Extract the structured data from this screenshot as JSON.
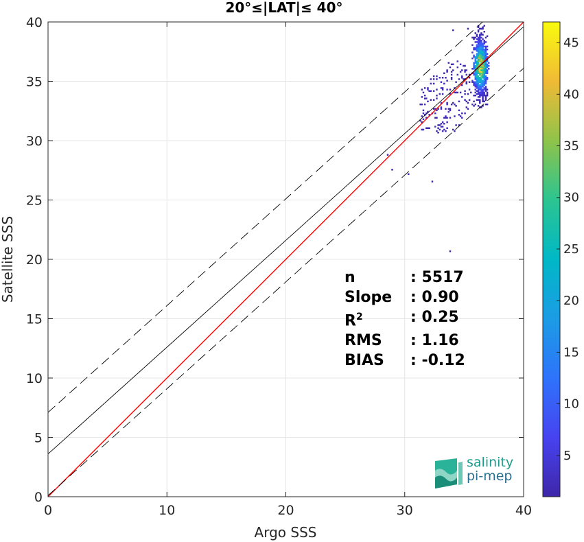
{
  "chart_data": {
    "type": "heatmap",
    "title": "20°≤|LAT|≤ 40°",
    "xlabel": "Argo SSS",
    "ylabel": "Satellite SSS",
    "xlim": [
      0,
      40
    ],
    "ylim": [
      0,
      40
    ],
    "xticks": [
      "0",
      "10",
      "20",
      "30",
      "40"
    ],
    "yticks": [
      "0",
      "5",
      "10",
      "15",
      "20",
      "25",
      "30",
      "35",
      "40"
    ],
    "grid": true,
    "colorbar": {
      "range": [
        1,
        47
      ],
      "ticks": [
        "5",
        "10",
        "15",
        "20",
        "25",
        "30",
        "35",
        "40",
        "45"
      ],
      "colormap": "parula"
    },
    "lines": [
      {
        "kind": "identity",
        "color": "#ff0000",
        "style": "solid",
        "intercept": 0,
        "slope": 1
      },
      {
        "kind": "regression",
        "color": "#000000",
        "style": "solid",
        "intercept": 3.6,
        "slope": 0.9
      },
      {
        "kind": "upper-bound",
        "color": "#000000",
        "style": "dashed",
        "intercept": 7.1,
        "slope": 0.9
      },
      {
        "kind": "lower-bound",
        "color": "#000000",
        "style": "dashed",
        "intercept": 0.1,
        "slope": 0.9
      }
    ],
    "density": {
      "core_center": [
        36.3,
        36.2
      ],
      "core_peak": 47,
      "x_range": [
        31.0,
        37.2
      ],
      "y_range": [
        26.5,
        39.6
      ]
    },
    "stats": [
      {
        "label": "n",
        "value": ": 5517"
      },
      {
        "label": "Slope",
        "value": ": 0.90"
      },
      {
        "label": "R2",
        "value": ": 0.25"
      },
      {
        "label": "RMS",
        "value": ": 1.16"
      },
      {
        "label": "BIAS",
        "value": ": -0.12"
      }
    ]
  },
  "logo": {
    "line1": "salinity",
    "line2": "pi-mep"
  }
}
